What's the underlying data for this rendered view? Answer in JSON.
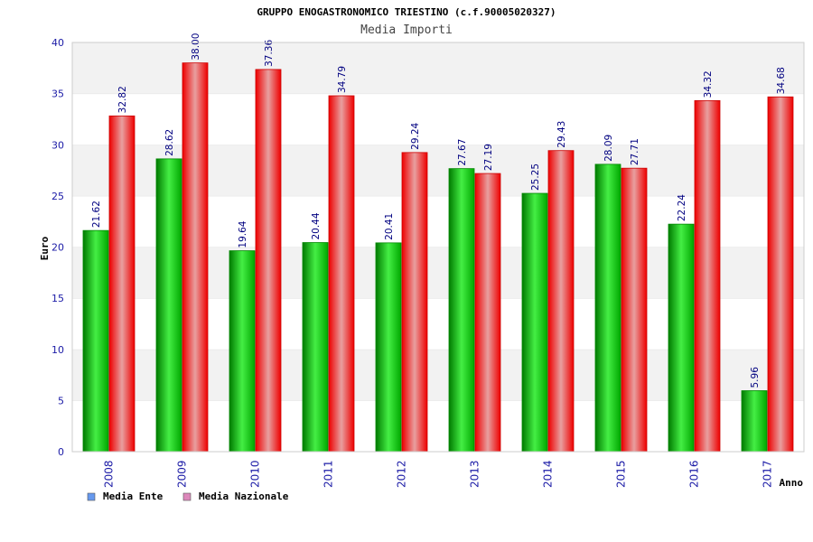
{
  "chart_data": {
    "type": "bar",
    "title": "GRUPPO ENOGASTRONOMICO TRIESTINO (c.f.90005020327)",
    "subtitle": "Media Importi",
    "xlabel": "Anno",
    "ylabel": "Euro",
    "ylim": [
      0,
      40
    ],
    "yticks": [
      0,
      5,
      10,
      15,
      20,
      25,
      30,
      35,
      40
    ],
    "grid": "horizontal bands",
    "legend_position": "bottom-left",
    "categories": [
      "2008",
      "2009",
      "2010",
      "2011",
      "2012",
      "2013",
      "2014",
      "2015",
      "2016",
      "2017"
    ],
    "series": [
      {
        "name": "Media Ente",
        "legend_color": "#6699ee",
        "color": "#00b000",
        "values": [
          21.62,
          28.62,
          19.64,
          20.44,
          20.41,
          27.67,
          25.25,
          28.09,
          22.24,
          5.96
        ]
      },
      {
        "name": "Media Nazionale",
        "legend_color": "#dd88bb",
        "color": "#ee1111",
        "values": [
          32.82,
          38.0,
          37.36,
          34.79,
          29.24,
          27.19,
          29.43,
          27.71,
          34.32,
          34.68
        ]
      }
    ],
    "data_labels": [
      [
        "21.62",
        "28.62",
        "19.64",
        "20.44",
        "20.41",
        "27.67",
        "25.25",
        "28.09",
        "22.24",
        "5.96"
      ],
      [
        "32.82",
        "38.00",
        "37.36",
        "34.79",
        "29.24",
        "27.19",
        "29.43",
        "27.71",
        "34.32",
        "34.68"
      ]
    ]
  }
}
